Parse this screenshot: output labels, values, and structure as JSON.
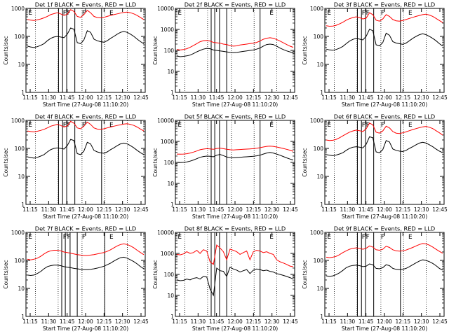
{
  "figure": {
    "background": "#ffffff",
    "axis_color": "#000000"
  },
  "chart_data": [
    {
      "type": "line",
      "title": "Det 1f BLACK = Events, RED = LLD",
      "ylabel": "Counts/sec",
      "xlabel": "Start Time (27-Aug-08 11:10:20)",
      "x_ticks": [
        "11:15",
        "11:30",
        "11:45",
        "12:00",
        "12:15",
        "12:30",
        "12:45"
      ],
      "y_ticks": [
        "1",
        "10",
        "100",
        "1000"
      ],
      "ylim": [
        1,
        1000
      ],
      "yscale": "log",
      "marker_labels": [
        "E",
        "F",
        "F",
        "F",
        "E"
      ],
      "series": [
        {
          "color": "#ff0000",
          "values": [
            400,
            380,
            370,
            390,
            420,
            460,
            520,
            600,
            650,
            700,
            640,
            560,
            620,
            900,
            780,
            520,
            480,
            600,
            850,
            700,
            520,
            470,
            460,
            480,
            520,
            560,
            600,
            640,
            680,
            720,
            740,
            700,
            640,
            560,
            470,
            400
          ]
        },
        {
          "color": "#000000",
          "values": [
            45,
            42,
            40,
            43,
            48,
            55,
            70,
            85,
            95,
            100,
            95,
            90,
            120,
            200,
            180,
            60,
            55,
            75,
            160,
            140,
            80,
            70,
            65,
            62,
            70,
            85,
            100,
            120,
            140,
            150,
            140,
            120,
            100,
            80,
            65,
            55
          ]
        }
      ]
    },
    {
      "type": "line",
      "title": "Det 2f BLACK = Events, RED = LLD",
      "ylabel": "Counts/sec",
      "xlabel": "Start Time (27-Aug-08 11:10:20)",
      "x_ticks": [
        "11:15",
        "11:30",
        "11:45",
        "12:00",
        "12:15",
        "12:30",
        "12:45"
      ],
      "y_ticks": [
        "1",
        "10",
        "100",
        "1000",
        "10000"
      ],
      "ylim": [
        1,
        10000
      ],
      "yscale": "log",
      "marker_labels": [
        "E",
        "E"
      ],
      "series": [
        {
          "color": "#ff0000",
          "values": [
            110,
            105,
            110,
            120,
            140,
            170,
            210,
            260,
            290,
            300,
            280,
            240,
            230,
            220,
            200,
            190,
            170,
            160,
            165,
            180,
            190,
            200,
            210,
            220,
            240,
            280,
            340,
            380,
            400,
            380,
            330,
            280,
            230,
            190,
            160,
            140
          ]
        },
        {
          "color": "#000000",
          "values": [
            55,
            50,
            52,
            55,
            60,
            70,
            85,
            100,
            115,
            125,
            120,
            105,
            100,
            95,
            90,
            85,
            80,
            78,
            80,
            85,
            90,
            95,
            100,
            105,
            115,
            130,
            160,
            190,
            200,
            190,
            160,
            130,
            110,
            95,
            85,
            75
          ]
        }
      ]
    },
    {
      "type": "line",
      "title": "Det 3f BLACK = Events, RED = LLD",
      "ylabel": "Counts/sec",
      "xlabel": "Start Time (27-Aug-08 11:10:20)",
      "x_ticks": [
        "11:15",
        "11:30",
        "11:45",
        "12:00",
        "12:15",
        "12:30",
        "12:45"
      ],
      "y_ticks": [
        "1",
        "10",
        "100",
        "1000"
      ],
      "ylim": [
        1,
        1000
      ],
      "yscale": "log",
      "marker_labels": [
        "E",
        "F",
        "F",
        "F",
        "E"
      ],
      "series": [
        {
          "color": "#ff0000",
          "values": [
            240,
            230,
            235,
            250,
            280,
            320,
            380,
            430,
            470,
            500,
            470,
            420,
            450,
            700,
            600,
            380,
            350,
            420,
            600,
            520,
            400,
            360,
            350,
            370,
            400,
            440,
            480,
            520,
            560,
            600,
            620,
            580,
            520,
            440,
            370,
            310
          ]
        },
        {
          "color": "#000000",
          "values": [
            35,
            33,
            32,
            34,
            38,
            44,
            55,
            68,
            78,
            85,
            80,
            75,
            100,
            180,
            160,
            50,
            46,
            60,
            130,
            110,
            65,
            58,
            55,
            52,
            58,
            70,
            85,
            100,
            115,
            125,
            115,
            100,
            85,
            70,
            55,
            45
          ]
        }
      ]
    },
    {
      "type": "line",
      "title": "Det 4f BLACK = Events, RED = LLD",
      "ylabel": "Counts/sec",
      "xlabel": "Start Time (27-Aug-08 11:10:20)",
      "x_ticks": [
        "11:15",
        "11:30",
        "11:45",
        "12:00",
        "12:15",
        "12:30",
        "12:45"
      ],
      "y_ticks": [
        "1",
        "10",
        "100",
        "1000"
      ],
      "ylim": [
        1,
        1000
      ],
      "yscale": "log",
      "marker_labels": [
        "E",
        "F",
        "F",
        "F",
        "E"
      ],
      "series": [
        {
          "color": "#ff0000",
          "values": [
            420,
            400,
            390,
            410,
            440,
            480,
            540,
            620,
            670,
            720,
            660,
            580,
            640,
            920,
            800,
            540,
            500,
            620,
            870,
            720,
            540,
            490,
            480,
            500,
            540,
            580,
            620,
            660,
            700,
            740,
            760,
            720,
            660,
            580,
            490,
            420
          ]
        },
        {
          "color": "#000000",
          "values": [
            50,
            47,
            45,
            48,
            53,
            60,
            75,
            90,
            100,
            105,
            100,
            95,
            125,
            210,
            190,
            65,
            60,
            80,
            165,
            145,
            85,
            75,
            70,
            67,
            75,
            90,
            105,
            125,
            145,
            155,
            145,
            125,
            105,
            85,
            70,
            60
          ]
        }
      ]
    },
    {
      "type": "line",
      "title": "Det 5f BLACK = Events, RED = LLD",
      "ylabel": "Counts/sec",
      "xlabel": "Start Time (27-Aug-08 11:10:20)",
      "x_ticks": [
        "11:15",
        "11:30",
        "11:45",
        "12:00",
        "12:15",
        "12:30",
        "12:45"
      ],
      "y_ticks": [
        "1",
        "10",
        "100",
        "1000",
        "10000"
      ],
      "ylim": [
        1,
        10000
      ],
      "yscale": "log",
      "marker_labels": [
        "E",
        "E"
      ],
      "series": [
        {
          "color": "#ff0000",
          "values": [
            250,
            245,
            250,
            260,
            280,
            310,
            350,
            400,
            430,
            450,
            440,
            420,
            460,
            480,
            450,
            420,
            400,
            390,
            400,
            410,
            420,
            430,
            440,
            450,
            470,
            500,
            540,
            580,
            600,
            580,
            540,
            500,
            460,
            420,
            380,
            340
          ]
        },
        {
          "color": "#000000",
          "values": [
            100,
            98,
            100,
            105,
            115,
            130,
            150,
            175,
            190,
            200,
            195,
            185,
            220,
            240,
            210,
            180,
            170,
            165,
            170,
            175,
            180,
            185,
            190,
            195,
            205,
            220,
            250,
            280,
            300,
            280,
            250,
            220,
            190,
            165,
            145,
            130
          ]
        }
      ]
    },
    {
      "type": "line",
      "title": "Det 6f BLACK = Events, RED = LLD",
      "ylabel": "Counts/sec",
      "xlabel": "Start Time (27-Aug-08 11:10:20)",
      "x_ticks": [
        "11:15",
        "11:30",
        "11:45",
        "12:00",
        "12:15",
        "12:30",
        "12:45"
      ],
      "y_ticks": [
        "1",
        "10",
        "100",
        "1000"
      ],
      "ylim": [
        1,
        1000
      ],
      "yscale": "log",
      "marker_labels": [
        "E",
        "F",
        "F",
        "F",
        "E"
      ],
      "series": [
        {
          "color": "#ff0000",
          "values": [
            200,
            190,
            195,
            210,
            240,
            280,
            330,
            380,
            420,
            450,
            430,
            400,
            500,
            800,
            700,
            380,
            350,
            420,
            620,
            540,
            400,
            350,
            340,
            360,
            390,
            430,
            470,
            510,
            550,
            590,
            610,
            570,
            510,
            430,
            360,
            300
          ]
        },
        {
          "color": "#000000",
          "values": [
            60,
            57,
            55,
            58,
            63,
            70,
            85,
            100,
            110,
            115,
            110,
            105,
            140,
            260,
            240,
            75,
            70,
            90,
            190,
            170,
            95,
            85,
            80,
            77,
            85,
            100,
            115,
            135,
            155,
            165,
            155,
            135,
            115,
            95,
            80,
            70
          ]
        }
      ]
    },
    {
      "type": "line",
      "title": "Det 7f BLACK = Events, RED = LLD",
      "ylabel": "Counts/sec",
      "xlabel": "Start Time (27-Aug-08 11:10:20)",
      "x_ticks": [
        "11:15",
        "11:30",
        "11:45",
        "12:00",
        "12:15",
        "12:30",
        "12:45"
      ],
      "y_ticks": [
        "1",
        "10",
        "100",
        "1000"
      ],
      "ylim": [
        1,
        1000
      ],
      "yscale": "log",
      "marker_labels": [
        "E",
        "F",
        "F",
        "F",
        "E"
      ],
      "series": [
        {
          "color": "#ff0000",
          "values": [
            110,
            105,
            110,
            120,
            140,
            170,
            200,
            220,
            230,
            230,
            220,
            200,
            190,
            180,
            170,
            160,
            155,
            150,
            150,
            155,
            160,
            170,
            180,
            190,
            210,
            240,
            280,
            330,
            370,
            390,
            370,
            330,
            280,
            230,
            190,
            160
          ]
        },
        {
          "color": "#000000",
          "values": [
            30,
            29,
            30,
            34,
            40,
            50,
            60,
            65,
            68,
            68,
            65,
            60,
            57,
            55,
            52,
            50,
            48,
            47,
            47,
            48,
            50,
            53,
            57,
            62,
            70,
            80,
            95,
            110,
            125,
            130,
            120,
            105,
            90,
            75,
            60,
            50
          ]
        }
      ]
    },
    {
      "type": "line",
      "title": "Det 8f BLACK = Events, RED = LLD",
      "ylabel": "Counts/sec",
      "xlabel": "Start Time (27-Aug-08 11:10:20)",
      "x_ticks": [
        "11:15",
        "11:30",
        "11:45",
        "12:00",
        "12:15",
        "12:30",
        "12:45"
      ],
      "y_ticks": [
        "1",
        "10",
        "100",
        "1000",
        "10000"
      ],
      "ylim": [
        1,
        10000
      ],
      "yscale": "log",
      "marker_labels": [
        "E",
        "E"
      ],
      "series": [
        {
          "color": "#ff0000",
          "values": [
            900,
            850,
            950,
            1200,
            1000,
            1100,
            1400,
            1000,
            1500,
            1300,
            400,
            300,
            2500,
            1800,
            1200,
            500,
            1600,
            1400,
            1200,
            900,
            1100,
            1300,
            500,
            1200,
            1400,
            1300,
            1100,
            1200,
            1000,
            900,
            500,
            400,
            350,
            300,
            250,
            230
          ]
        },
        {
          "color": "#000000",
          "values": [
            55,
            50,
            52,
            60,
            55,
            65,
            70,
            60,
            80,
            75,
            20,
            10,
            200,
            150,
            140,
            80,
            220,
            180,
            160,
            130,
            150,
            170,
            110,
            160,
            180,
            170,
            150,
            160,
            140,
            130,
            110,
            100,
            90,
            80,
            70,
            60
          ]
        }
      ]
    },
    {
      "type": "line",
      "title": "Det 9f BLACK = Events, RED = LLD",
      "ylabel": "Counts/sec",
      "xlabel": "Start Time (27-Aug-08 11:10:20)",
      "x_ticks": [
        "11:15",
        "11:30",
        "11:45",
        "12:00",
        "12:15",
        "12:30",
        "12:45"
      ],
      "y_ticks": [
        "1",
        "10",
        "100",
        "1000"
      ],
      "ylim": [
        1,
        1000
      ],
      "yscale": "log",
      "marker_labels": [
        "E",
        "F",
        "F",
        "F",
        "E"
      ],
      "series": [
        {
          "color": "#ff0000",
          "values": [
            130,
            125,
            130,
            140,
            160,
            190,
            220,
            250,
            270,
            280,
            270,
            250,
            270,
            330,
            300,
            240,
            230,
            250,
            320,
            290,
            240,
            220,
            215,
            220,
            235,
            260,
            290,
            330,
            370,
            400,
            390,
            350,
            300,
            250,
            210,
            180
          ]
        },
        {
          "color": "#000000",
          "values": [
            28,
            27,
            28,
            31,
            36,
            44,
            55,
            62,
            66,
            68,
            65,
            60,
            62,
            75,
            70,
            52,
            50,
            55,
            70,
            65,
            52,
            48,
            47,
            48,
            52,
            60,
            70,
            82,
            95,
            105,
            100,
            90,
            78,
            65,
            52,
            45
          ]
        }
      ]
    }
  ]
}
